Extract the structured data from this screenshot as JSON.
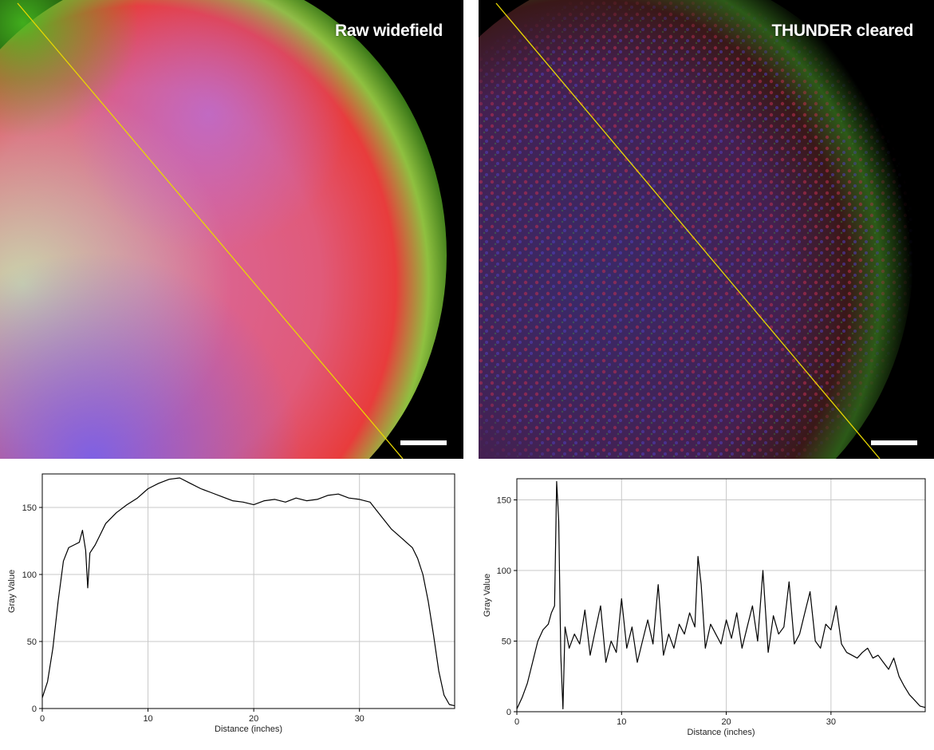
{
  "panels": [
    {
      "title": "Raw widefield"
    },
    {
      "title": "THUNDER cleared"
    }
  ],
  "colors": {
    "profile_line": "#e8d800",
    "trace": "#000000",
    "grid": "#c8c8c8"
  },
  "chart_data": [
    {
      "type": "line",
      "title": "",
      "xlabel": "Distance (inches)",
      "ylabel": "Gray Value",
      "xlim": [
        0,
        39
      ],
      "ylim": [
        0,
        175
      ],
      "xticks": [
        0,
        10,
        20,
        30
      ],
      "yticks": [
        0,
        50,
        100,
        150
      ],
      "grid": true,
      "series": [
        {
          "x": [
            0,
            0.5,
            1,
            1.5,
            2,
            2.5,
            3,
            3.5,
            3.8,
            4.1,
            4.3,
            4.5,
            5,
            5.5,
            6,
            7,
            8,
            9,
            10,
            11,
            12,
            13,
            14,
            15,
            16,
            17,
            18,
            19,
            20,
            21,
            22,
            23,
            24,
            25,
            26,
            27,
            28,
            29,
            30,
            31,
            32,
            33,
            34,
            35,
            35.5,
            36,
            36.5,
            37,
            37.5,
            38,
            38.5,
            39
          ],
          "y": [
            8,
            20,
            45,
            80,
            110,
            120,
            122,
            124,
            133,
            118,
            90,
            116,
            122,
            130,
            138,
            146,
            152,
            157,
            164,
            168,
            171,
            172,
            168,
            164,
            161,
            158,
            155,
            154,
            152,
            155,
            156,
            154,
            157,
            155,
            156,
            159,
            160,
            157,
            156,
            154,
            144,
            134,
            127,
            120,
            112,
            100,
            80,
            55,
            28,
            10,
            3,
            2
          ]
        }
      ]
    },
    {
      "type": "line",
      "title": "",
      "xlabel": "Distance (inches)",
      "ylabel": "Gray Value",
      "xlim": [
        0,
        39
      ],
      "ylim": [
        0,
        165
      ],
      "xticks": [
        0,
        10,
        20,
        30
      ],
      "yticks": [
        0,
        50,
        100,
        150
      ],
      "grid": true,
      "series": [
        {
          "x": [
            0,
            0.5,
            1,
            1.5,
            2,
            2.5,
            3,
            3.3,
            3.6,
            3.8,
            4.0,
            4.2,
            4.4,
            4.6,
            5,
            5.5,
            6,
            6.5,
            7,
            7.5,
            8,
            8.5,
            9,
            9.5,
            10,
            10.5,
            11,
            11.5,
            12,
            12.5,
            13,
            13.5,
            14,
            14.5,
            15,
            15.5,
            16,
            16.5,
            17,
            17.3,
            17.6,
            18,
            18.5,
            19,
            19.5,
            20,
            20.5,
            21,
            21.5,
            22,
            22.5,
            23,
            23.5,
            24,
            24.5,
            25,
            25.5,
            26,
            26.5,
            27,
            27.5,
            28,
            28.5,
            29,
            29.5,
            30,
            30.5,
            31,
            31.5,
            32,
            32.5,
            33,
            33.5,
            34,
            34.5,
            35,
            35.5,
            36,
            36.5,
            37,
            37.5,
            38,
            38.5,
            39
          ],
          "y": [
            2,
            10,
            20,
            35,
            50,
            58,
            62,
            70,
            75,
            163,
            135,
            40,
            2,
            60,
            45,
            55,
            48,
            72,
            40,
            58,
            75,
            35,
            50,
            42,
            80,
            45,
            60,
            35,
            50,
            65,
            48,
            90,
            40,
            55,
            45,
            62,
            55,
            70,
            60,
            110,
            90,
            45,
            62,
            55,
            48,
            65,
            52,
            70,
            45,
            60,
            75,
            50,
            100,
            42,
            68,
            55,
            60,
            92,
            48,
            55,
            70,
            85,
            50,
            45,
            62,
            58,
            75,
            48,
            42,
            40,
            38,
            42,
            45,
            38,
            40,
            35,
            30,
            38,
            25,
            18,
            12,
            8,
            4,
            3
          ]
        }
      ]
    }
  ]
}
